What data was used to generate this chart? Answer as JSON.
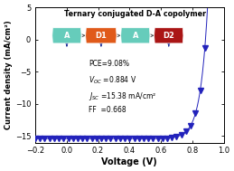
{
  "title": "Ternary conjugated D-A copolymer",
  "xlabel": "Voltage (V)",
  "ylabel": "Current density (mA/cm²)",
  "xlim": [
    -0.2,
    1.0
  ],
  "ylim": [
    -16,
    5
  ],
  "xticks": [
    -0.2,
    0.0,
    0.2,
    0.4,
    0.6,
    0.8,
    1.0
  ],
  "yticks": [
    5,
    0,
    -5,
    -10,
    -15
  ],
  "curve_color": "#2222bb",
  "marker": "v",
  "markersize": 4.5,
  "box_labels": [
    "A",
    "D1",
    "A",
    "D2"
  ],
  "box_colors": [
    "#66ccbb",
    "#e05a1a",
    "#66ccbb",
    "#aa1515"
  ],
  "Voc": 0.884,
  "Jsc": -15.38,
  "FF": 0.668,
  "background_color": "#ffffff",
  "metrics_text": [
    "PCE=9.08%",
    "V_{OC} =0.884 V",
    "J_{SC} =15.38 mA/cm²",
    "FF  =0.668"
  ]
}
